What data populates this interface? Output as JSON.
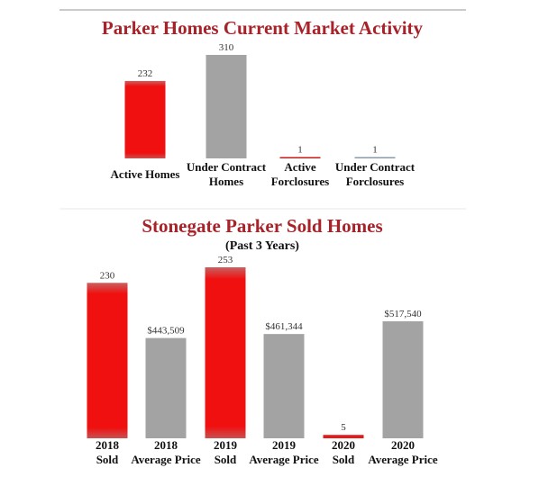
{
  "chart_data": [
    {
      "type": "bar",
      "title": "Parker Homes Current Market Activity",
      "categories": [
        [
          "Active Homes"
        ],
        [
          "Under Contract",
          "Homes"
        ],
        [
          "Active",
          "Forclosures"
        ],
        [
          "Under Contract",
          "Forclosures"
        ]
      ],
      "values": [
        232,
        310,
        1,
        1
      ],
      "value_labels": [
        "232",
        "310",
        "1",
        "1"
      ],
      "colors": [
        "#ef1010",
        "#a3a3a3",
        "#c41a1a",
        "#8a9aa8"
      ],
      "ylim": [
        0,
        310
      ]
    },
    {
      "type": "bar",
      "title": "Stonegate Parker Sold Homes",
      "subtitle": "(Past 3 Years)",
      "categories": [
        [
          "2018",
          "Sold"
        ],
        [
          "2018",
          "Average Price"
        ],
        [
          "2019",
          "Sold"
        ],
        [
          "2019",
          "Average Price"
        ],
        [
          "2020",
          "Sold"
        ],
        [
          "2020",
          "Average Price"
        ]
      ],
      "values": [
        230,
        443509,
        253,
        461344,
        5,
        517540
      ],
      "value_labels": [
        "230",
        "$443,509",
        "253",
        "$461,344",
        "5",
        "$517,540"
      ],
      "series_scale": [
        "count",
        "price",
        "count",
        "price",
        "count",
        "price"
      ],
      "colors": [
        "#ef1010",
        "#a3a3a3",
        "#ef1010",
        "#a3a3a3",
        "#e21a1a",
        "#a3a3a3"
      ],
      "ylim_count": [
        0,
        253
      ],
      "ylim_price": [
        0,
        517540
      ]
    }
  ]
}
